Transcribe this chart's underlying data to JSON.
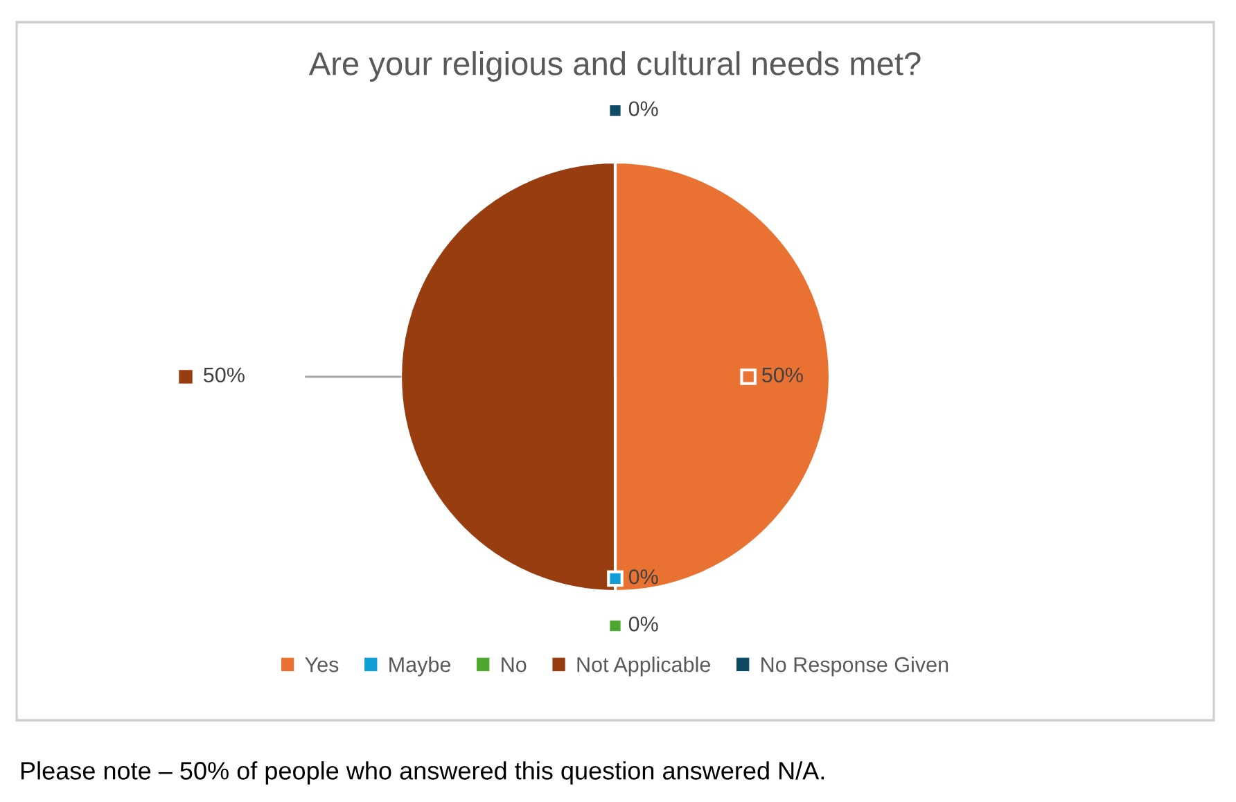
{
  "chart_data": {
    "type": "pie",
    "title": "Are your religious and cultural needs met?",
    "categories": [
      "Yes",
      "Maybe",
      "No",
      "Not Applicable",
      "No Response Given"
    ],
    "values": [
      50,
      0,
      0,
      50,
      0
    ],
    "colors": [
      "#e97132",
      "#0f9ed5",
      "#4ea72e",
      "#973d0f",
      "#0e4a64"
    ],
    "value_labels": [
      "50%",
      "0%",
      "0%",
      "50%",
      "0%"
    ],
    "legend": "bottom",
    "annotations": [
      "Please note – 50% of people who answered this question answered N/A."
    ]
  }
}
